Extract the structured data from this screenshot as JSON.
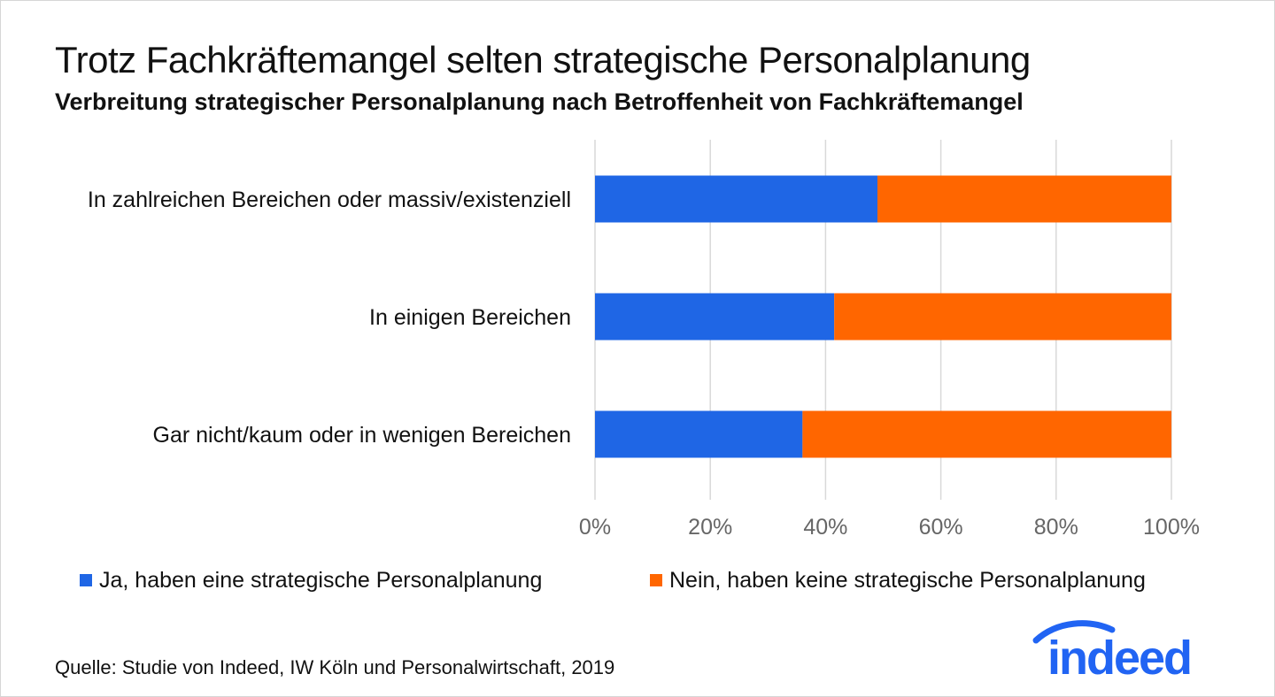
{
  "title": "Trotz Fachkräftemangel selten strategische Personalplanung",
  "subtitle": "Verbreitung strategischer Personalplanung nach Betroffenheit von Fachkräftemangel",
  "source": "Quelle: Studie von Indeed, IW Köln und Personalwirtschaft, 2019",
  "logo_text": "indeed",
  "colors": {
    "ja": "#1f66e5",
    "nein": "#ff6600",
    "grid": "#d9d9d9",
    "tick": "#666666",
    "logo": "#2164f3"
  },
  "chart_data": {
    "type": "bar",
    "orientation": "horizontal",
    "stacked": true,
    "categories": [
      "In zahlreichen Bereichen oder massiv/existenziell",
      "In einigen Bereichen",
      "Gar nicht/kaum oder in wenigen Bereichen"
    ],
    "series": [
      {
        "name": "Ja, haben eine strategische Personalplanung",
        "values": [
          49,
          41.5,
          36
        ]
      },
      {
        "name": "Nein, haben keine strategische Personalplanung",
        "values": [
          51,
          58.5,
          64
        ]
      }
    ],
    "xlim": [
      0,
      100
    ],
    "xticks": [
      "0%",
      "20%",
      "40%",
      "60%",
      "80%",
      "100%"
    ],
    "grid": true,
    "legend_position": "bottom"
  }
}
